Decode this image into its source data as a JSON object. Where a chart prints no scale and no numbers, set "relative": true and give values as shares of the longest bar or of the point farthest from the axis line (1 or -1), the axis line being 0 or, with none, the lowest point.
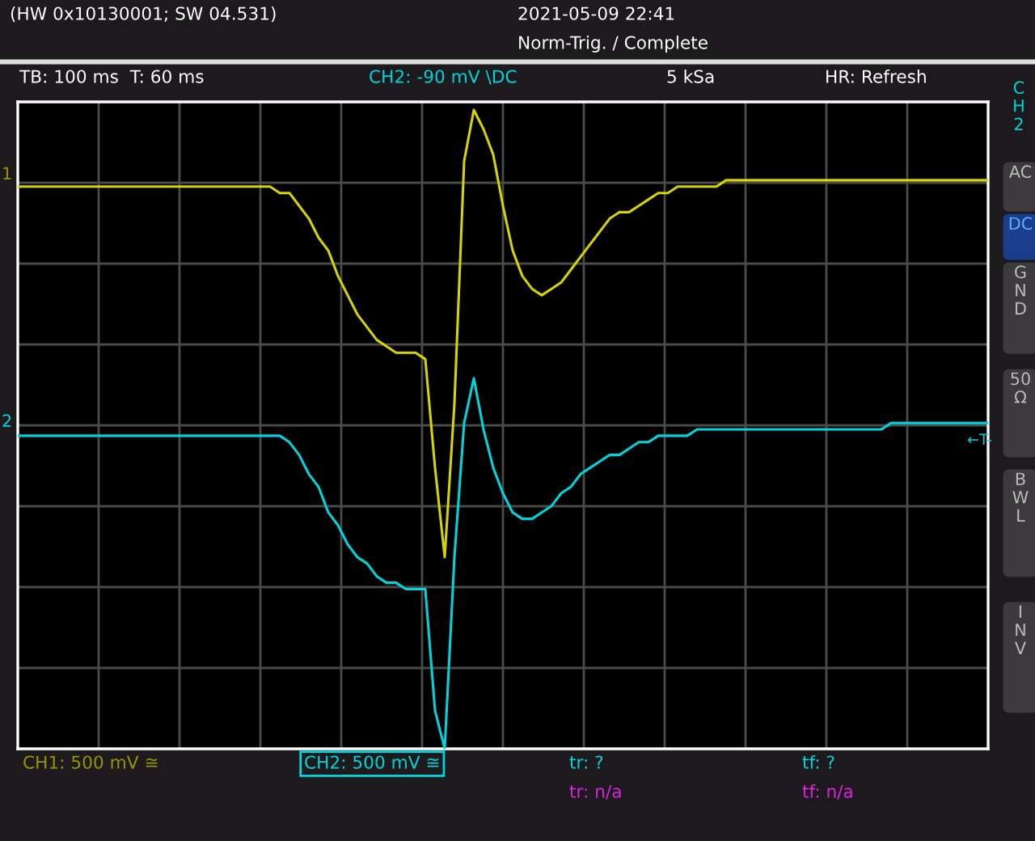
{
  "chart_data": {
    "type": "line",
    "relative": true,
    "grid": true,
    "categories": [
      null,
      null,
      null,
      null,
      null,
      null,
      null,
      null,
      null,
      null,
      null,
      null,
      null,
      null,
      null,
      null,
      null,
      null,
      null,
      null,
      null,
      null,
      null,
      null,
      null,
      null,
      null,
      null,
      null,
      null,
      null,
      null,
      null,
      null,
      null,
      null,
      null,
      null,
      null,
      null,
      null,
      null,
      null,
      null,
      null,
      null,
      null,
      null,
      null,
      null,
      null,
      null,
      null,
      null,
      null,
      null,
      null,
      null,
      null,
      null,
      null,
      null,
      null,
      null,
      null,
      null,
      null,
      null,
      null,
      null,
      null,
      null,
      null,
      null,
      null,
      null,
      null,
      null,
      null,
      null,
      null,
      null,
      null,
      null,
      null,
      null,
      null,
      null,
      null,
      null,
      null,
      null,
      null,
      null,
      null,
      null,
      null,
      null,
      null,
      null,
      null
    ],
    "series": [
      {
        "color": "#d8d400",
        "values": [
          0.88,
          0.88,
          0.88,
          0.88,
          0.88,
          0.88,
          0.88,
          0.88,
          0.88,
          0.88,
          0.88,
          0.88,
          0.88,
          0.88,
          0.88,
          0.88,
          0.88,
          0.88,
          0.88,
          0.88,
          0.88,
          0.88,
          0.88,
          0.88,
          0.88,
          0.88,
          0.88,
          0.87,
          0.87,
          0.85,
          0.83,
          0.8,
          0.78,
          0.74,
          0.71,
          0.68,
          0.66,
          0.64,
          0.63,
          0.62,
          0.62,
          0.62,
          0.61,
          0.44,
          0.3,
          0.54,
          0.92,
          1,
          0.97,
          0.93,
          0.85,
          0.78,
          0.74,
          0.72,
          0.71,
          0.72,
          0.73,
          0.75,
          0.77,
          0.79,
          0.81,
          0.83,
          0.84,
          0.84,
          0.85,
          0.86,
          0.87,
          0.87,
          0.88,
          0.88,
          0.88,
          0.88,
          0.88,
          0.89,
          0.89,
          0.89,
          0.89,
          0.89,
          0.89,
          0.89,
          0.89,
          0.89,
          0.89,
          0.89,
          0.89,
          0.89,
          0.89,
          0.89,
          0.89,
          0.89,
          0.89,
          0.89,
          0.89,
          0.89,
          0.89,
          0.89,
          0.89,
          0.89,
          0.89,
          0.89,
          0.89
        ]
      },
      {
        "color": "#00d4dc",
        "values": [
          0.49,
          0.49,
          0.49,
          0.49,
          0.49,
          0.49,
          0.49,
          0.49,
          0.49,
          0.49,
          0.49,
          0.49,
          0.49,
          0.49,
          0.49,
          0.49,
          0.49,
          0.49,
          0.49,
          0.49,
          0.49,
          0.49,
          0.49,
          0.49,
          0.49,
          0.49,
          0.49,
          0.49,
          0.48,
          0.46,
          0.43,
          0.41,
          0.37,
          0.35,
          0.32,
          0.3,
          0.29,
          0.27,
          0.26,
          0.26,
          0.25,
          0.25,
          0.25,
          0.06,
          0,
          0.3,
          0.51,
          0.58,
          0.5,
          0.44,
          0.4,
          0.37,
          0.36,
          0.36,
          0.37,
          0.38,
          0.4,
          0.41,
          0.43,
          0.44,
          0.45,
          0.46,
          0.46,
          0.47,
          0.48,
          0.48,
          0.49,
          0.49,
          0.49,
          0.49,
          0.5,
          0.5,
          0.5,
          0.5,
          0.5,
          0.5,
          0.5,
          0.5,
          0.5,
          0.5,
          0.5,
          0.5,
          0.5,
          0.5,
          0.5,
          0.5,
          0.5,
          0.5,
          0.5,
          0.5,
          0.51,
          0.51,
          0.51,
          0.51,
          0.51,
          0.51,
          0.51,
          0.51,
          0.51,
          0.51,
          0.51
        ]
      }
    ],
    "annotations": [
      "(HW 0x10130001; SW 04.531)",
      "2021-05-09 22:41",
      "Norm-Trig. / Complete",
      "TB: 100 ms  T: 60 ms",
      "CH2: -90 mV \\DC",
      "5 kSa",
      "HR: Refresh",
      "CH1: 500 mV ≅",
      "CH2: 500 mV ≅",
      "tr: ?",
      "tf: ?",
      "tr: n/a",
      "tf: n/a",
      "C\nH\n2",
      "AC",
      "DC",
      "G\nN\nD",
      "50\nΩ",
      "B\nW\nL",
      "I\nN\nV",
      "1",
      "2",
      "←T-"
    ]
  }
}
